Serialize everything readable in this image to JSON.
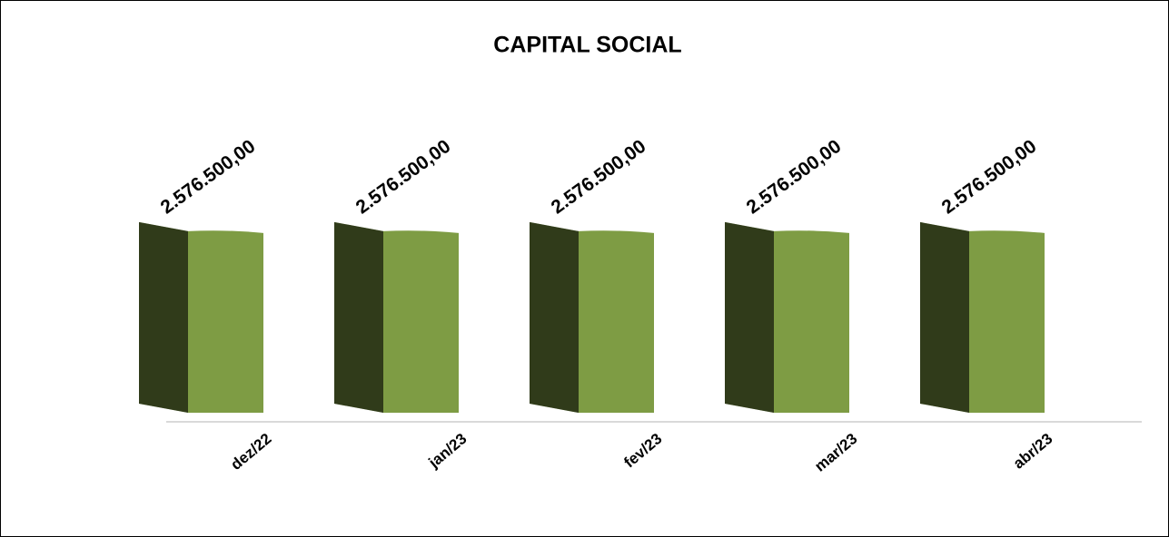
{
  "chart_data": {
    "type": "bar3d",
    "title": "CAPITAL SOCIAL",
    "categories": [
      "dez/22",
      "jan/23",
      "fev/23",
      "mar/23",
      "abr/23"
    ],
    "values": [
      2576500,
      2576500,
      2576500,
      2576500,
      2576500
    ],
    "value_labels": [
      "2.576.500,00",
      "2.576.500,00",
      "2.576.500,00",
      "2.576.500,00",
      "2.576.500,00"
    ],
    "color": "#7e9c44",
    "ylim": [
      0,
      3000000
    ]
  }
}
